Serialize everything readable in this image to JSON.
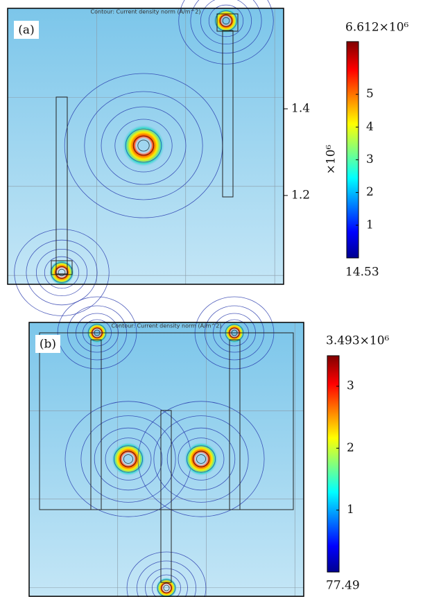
{
  "chart_data": [
    {
      "type": "contour",
      "panel_label": "(a)",
      "title": "Contour: Current density norm (A/m^2)",
      "cmax": {
        "value": 6.612,
        "label": "6.612×10⁶"
      },
      "cmin": {
        "value": 1.453e-05,
        "label": "14.53"
      },
      "cticks": [
        1,
        2,
        3,
        4,
        5
      ],
      "ylim": [
        0.995,
        1.632
      ],
      "yticks": [
        1.2,
        1.4
      ],
      "y_multiplier": "×10⁶"
    },
    {
      "type": "contour",
      "panel_label": "(b)",
      "title": "Contour: Current density norm (A/m^2)",
      "cmax": {
        "value": 3.493,
        "label": "3.493×10⁶"
      },
      "cmin": {
        "value": 7.749e-05,
        "label": "77.49"
      },
      "cticks": [
        1,
        2,
        3
      ]
    }
  ]
}
